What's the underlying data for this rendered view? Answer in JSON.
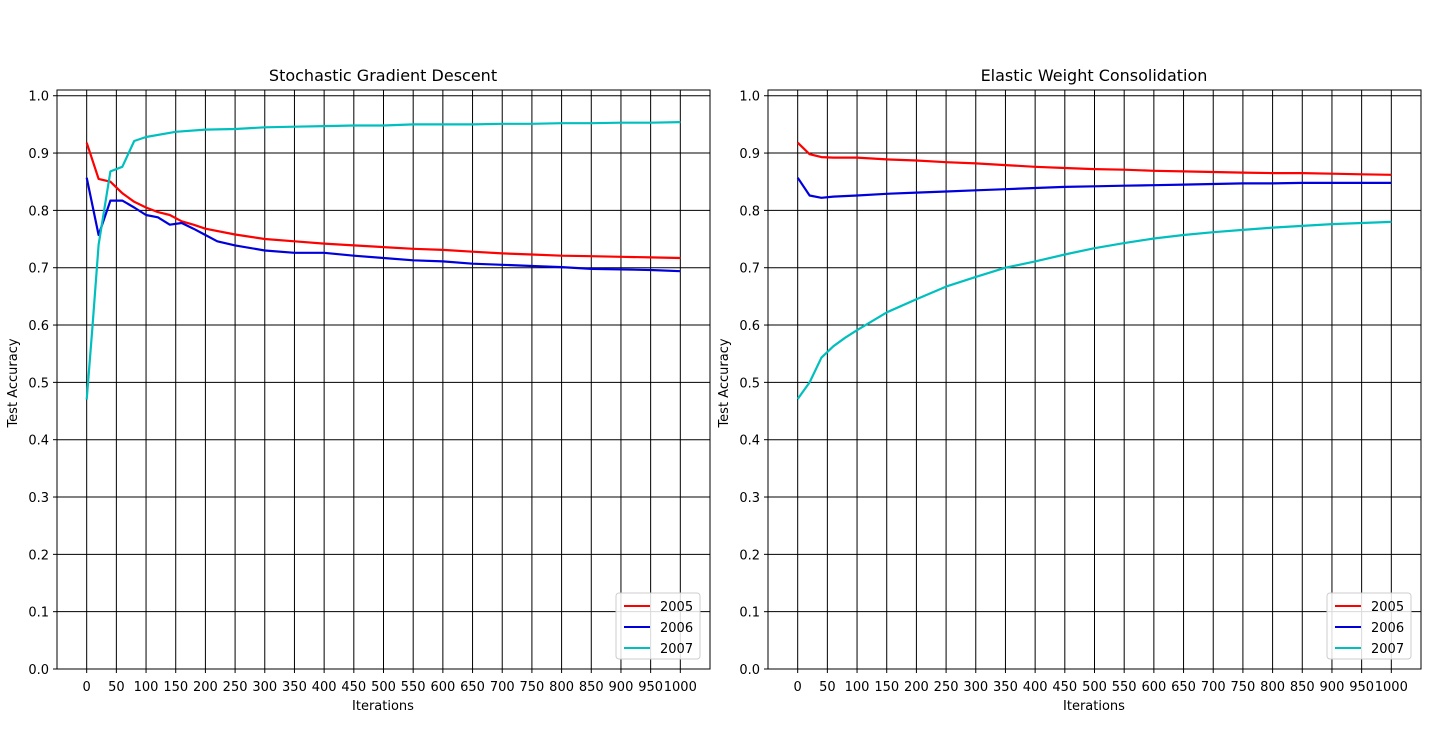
{
  "chart_data": [
    {
      "type": "line",
      "title": "Stochastic Gradient Descent",
      "xlabel": "Iterations",
      "ylabel": "Test Accuracy",
      "xlim": [
        -50,
        1050
      ],
      "ylim": [
        0.0,
        1.01
      ],
      "grid": true,
      "legend_position": "bottom-right",
      "xticks": [
        "0",
        "50",
        "100",
        "150",
        "200",
        "250",
        "300",
        "350",
        "400",
        "450",
        "500",
        "550",
        "600",
        "650",
        "700",
        "750",
        "800",
        "850",
        "900",
        "950",
        "1000"
      ],
      "yticks": [
        "0.0",
        "0.1",
        "0.2",
        "0.3",
        "0.4",
        "0.5",
        "0.6",
        "0.7",
        "0.8",
        "0.9",
        "1.0"
      ],
      "series": [
        {
          "name": "2005",
          "color": "#ff0000",
          "x": [
            0,
            20,
            40,
            60,
            80,
            100,
            120,
            140,
            160,
            180,
            200,
            250,
            300,
            350,
            400,
            450,
            500,
            550,
            600,
            650,
            700,
            750,
            800,
            850,
            900,
            950,
            1000
          ],
          "y": [
            0.918,
            0.855,
            0.85,
            0.83,
            0.815,
            0.805,
            0.797,
            0.792,
            0.781,
            0.775,
            0.768,
            0.758,
            0.75,
            0.746,
            0.742,
            0.739,
            0.736,
            0.733,
            0.731,
            0.728,
            0.725,
            0.723,
            0.721,
            0.72,
            0.719,
            0.718,
            0.717
          ]
        },
        {
          "name": "2006",
          "color": "#0000dd",
          "x": [
            0,
            20,
            40,
            60,
            80,
            100,
            120,
            140,
            160,
            180,
            200,
            220,
            250,
            300,
            350,
            400,
            450,
            500,
            550,
            600,
            650,
            700,
            750,
            800,
            850,
            900,
            950,
            1000
          ],
          "y": [
            0.857,
            0.757,
            0.817,
            0.817,
            0.805,
            0.792,
            0.788,
            0.775,
            0.778,
            0.768,
            0.757,
            0.746,
            0.739,
            0.73,
            0.726,
            0.726,
            0.721,
            0.717,
            0.713,
            0.711,
            0.707,
            0.705,
            0.703,
            0.701,
            0.698,
            0.697,
            0.696,
            0.694
          ]
        },
        {
          "name": "2007",
          "color": "#00bfbf",
          "x": [
            0,
            10,
            20,
            40,
            60,
            80,
            100,
            150,
            200,
            250,
            300,
            350,
            400,
            450,
            500,
            550,
            600,
            650,
            700,
            750,
            800,
            850,
            900,
            950,
            1000
          ],
          "y": [
            0.47,
            0.6,
            0.74,
            0.868,
            0.876,
            0.921,
            0.928,
            0.937,
            0.941,
            0.942,
            0.945,
            0.946,
            0.947,
            0.948,
            0.948,
            0.95,
            0.95,
            0.95,
            0.951,
            0.951,
            0.952,
            0.952,
            0.953,
            0.953,
            0.954
          ]
        }
      ]
    },
    {
      "type": "line",
      "title": "Elastic Weight Consolidation",
      "xlabel": "Iterations",
      "ylabel": "Test Accuracy",
      "xlim": [
        -50,
        1050
      ],
      "ylim": [
        0.0,
        1.01
      ],
      "grid": true,
      "legend_position": "bottom-right",
      "xticks": [
        "0",
        "50",
        "100",
        "150",
        "200",
        "250",
        "300",
        "350",
        "400",
        "450",
        "500",
        "550",
        "600",
        "650",
        "700",
        "750",
        "800",
        "850",
        "900",
        "950",
        "1000"
      ],
      "yticks": [
        "0.0",
        "0.1",
        "0.2",
        "0.3",
        "0.4",
        "0.5",
        "0.6",
        "0.7",
        "0.8",
        "0.9",
        "1.0"
      ],
      "series": [
        {
          "name": "2005",
          "color": "#ff0000",
          "x": [
            0,
            20,
            40,
            60,
            100,
            150,
            200,
            250,
            300,
            350,
            400,
            450,
            500,
            550,
            600,
            650,
            700,
            750,
            800,
            850,
            900,
            950,
            1000
          ],
          "y": [
            0.918,
            0.898,
            0.893,
            0.892,
            0.892,
            0.889,
            0.887,
            0.884,
            0.882,
            0.879,
            0.876,
            0.874,
            0.872,
            0.871,
            0.869,
            0.868,
            0.867,
            0.866,
            0.865,
            0.865,
            0.864,
            0.863,
            0.862
          ]
        },
        {
          "name": "2006",
          "color": "#0000dd",
          "x": [
            0,
            20,
            40,
            60,
            100,
            150,
            200,
            250,
            300,
            350,
            400,
            450,
            500,
            550,
            600,
            650,
            700,
            750,
            800,
            850,
            900,
            950,
            1000
          ],
          "y": [
            0.857,
            0.826,
            0.822,
            0.824,
            0.826,
            0.829,
            0.831,
            0.833,
            0.835,
            0.837,
            0.839,
            0.841,
            0.842,
            0.843,
            0.844,
            0.845,
            0.846,
            0.847,
            0.847,
            0.848,
            0.848,
            0.848,
            0.848
          ]
        },
        {
          "name": "2007",
          "color": "#00bfbf",
          "x": [
            0,
            20,
            40,
            60,
            80,
            100,
            150,
            200,
            250,
            300,
            350,
            400,
            450,
            500,
            550,
            600,
            650,
            700,
            750,
            800,
            850,
            900,
            950,
            1000
          ],
          "y": [
            0.471,
            0.5,
            0.543,
            0.563,
            0.578,
            0.591,
            0.622,
            0.645,
            0.667,
            0.684,
            0.7,
            0.711,
            0.723,
            0.734,
            0.743,
            0.751,
            0.757,
            0.762,
            0.766,
            0.77,
            0.773,
            0.776,
            0.778,
            0.78
          ]
        }
      ]
    }
  ]
}
